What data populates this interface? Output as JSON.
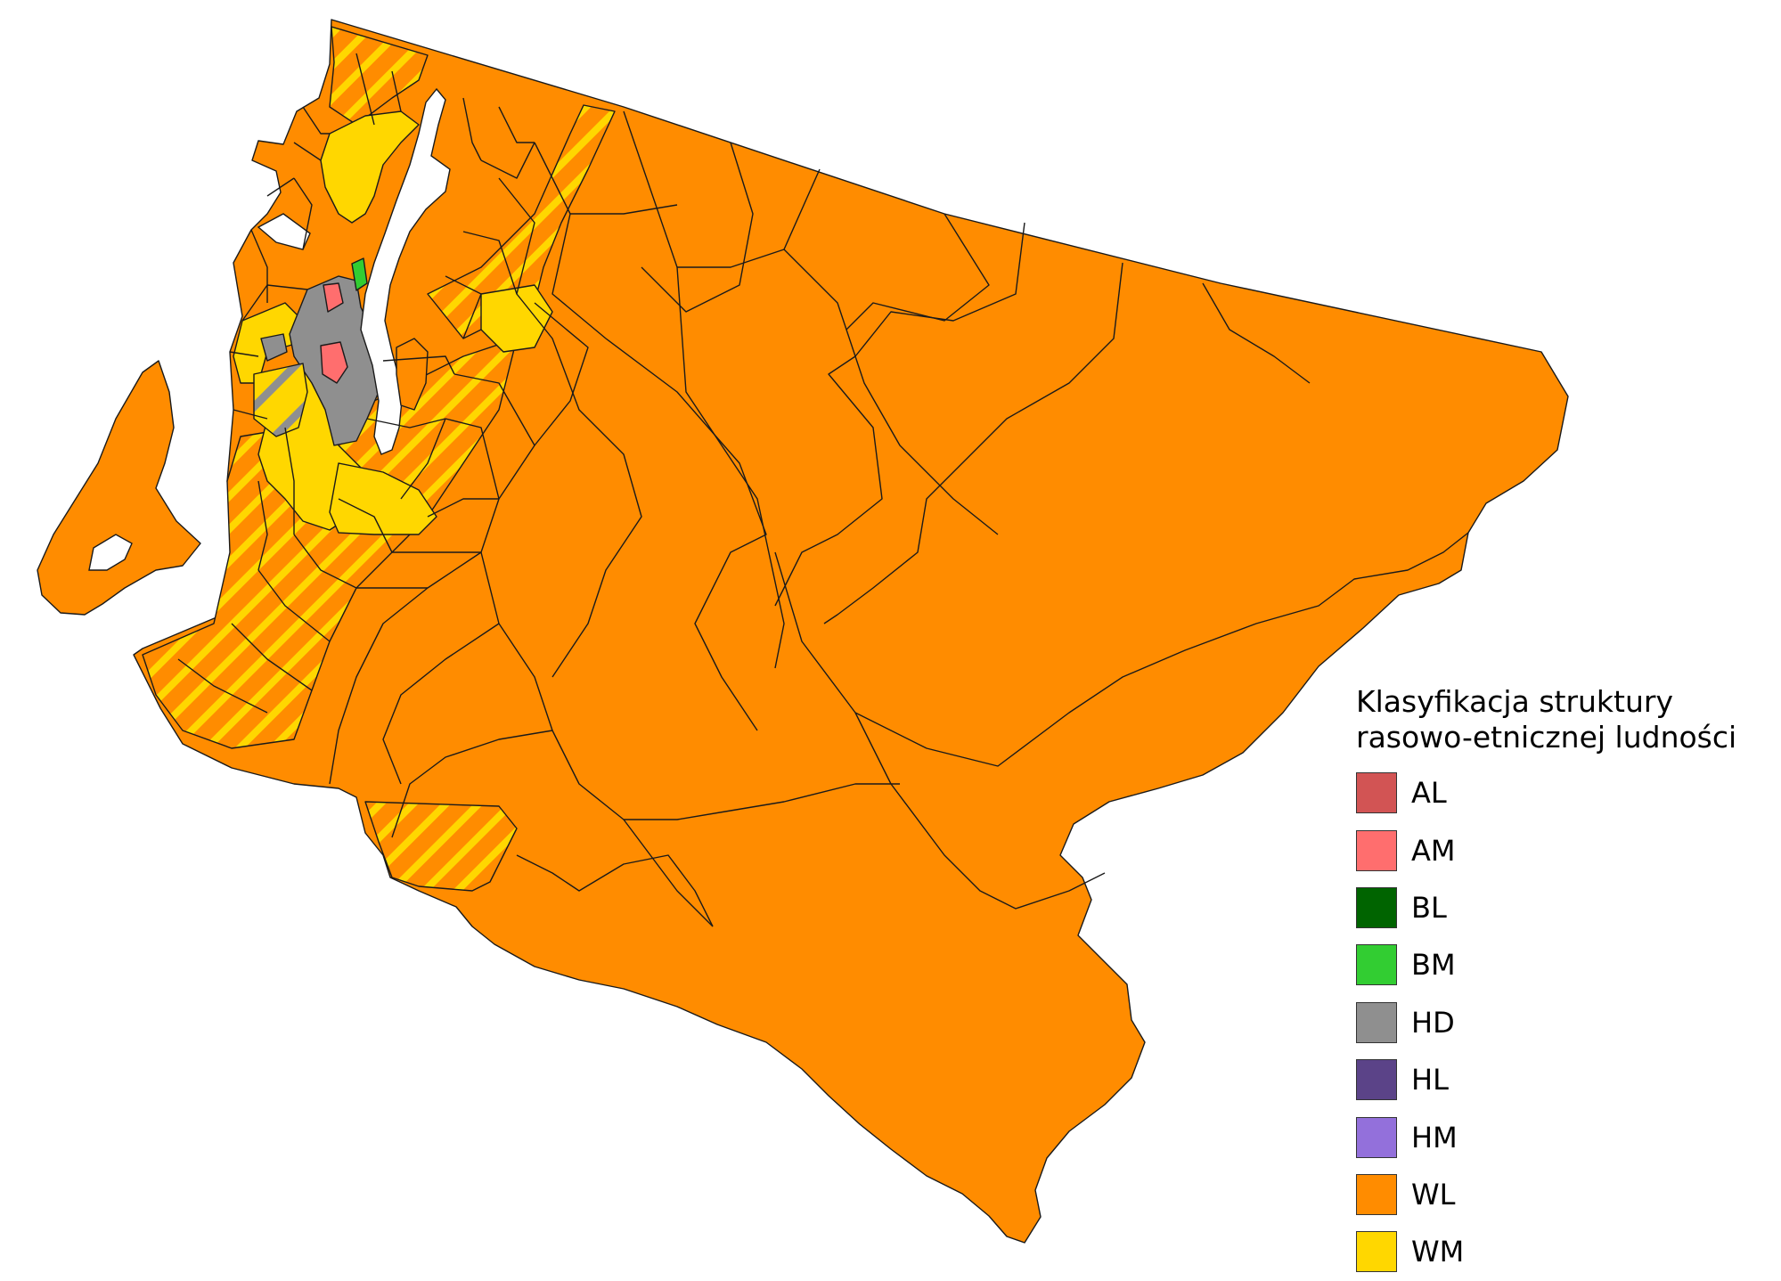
{
  "legend": {
    "title_line1": "Klasyfikacja struktury",
    "title_line2": "rasowo-etnicznej ludności",
    "items": [
      {
        "label": "AL",
        "color": "#d25454"
      },
      {
        "label": "AM",
        "color": "#ff6e6e"
      },
      {
        "label": "BL",
        "color": "#006400"
      },
      {
        "label": "BM",
        "color": "#32cd32"
      },
      {
        "label": "HD",
        "color": "#8f8f8f"
      },
      {
        "label": "HL",
        "color": "#5b4388"
      },
      {
        "label": "HM",
        "color": "#9370db"
      },
      {
        "label": "WL",
        "color": "#ff8c00"
      },
      {
        "label": "WM",
        "color": "#ffd700"
      }
    ]
  }
}
